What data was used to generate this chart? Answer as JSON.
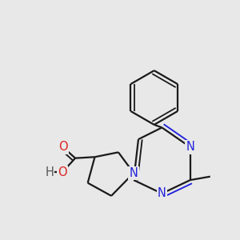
{
  "background_color": "#e8e8e8",
  "bond_color": "#1a1a1a",
  "nitrogen_color": "#2222dd",
  "oxygen_color": "#dd2222",
  "h_color": "#555555",
  "line_width": 1.6,
  "font_size_atom": 10.5,
  "fig_size": [
    3.0,
    3.0
  ],
  "dpi": 100,
  "xlim": [
    0.0,
    1.0
  ],
  "ylim": [
    0.05,
    1.05
  ]
}
